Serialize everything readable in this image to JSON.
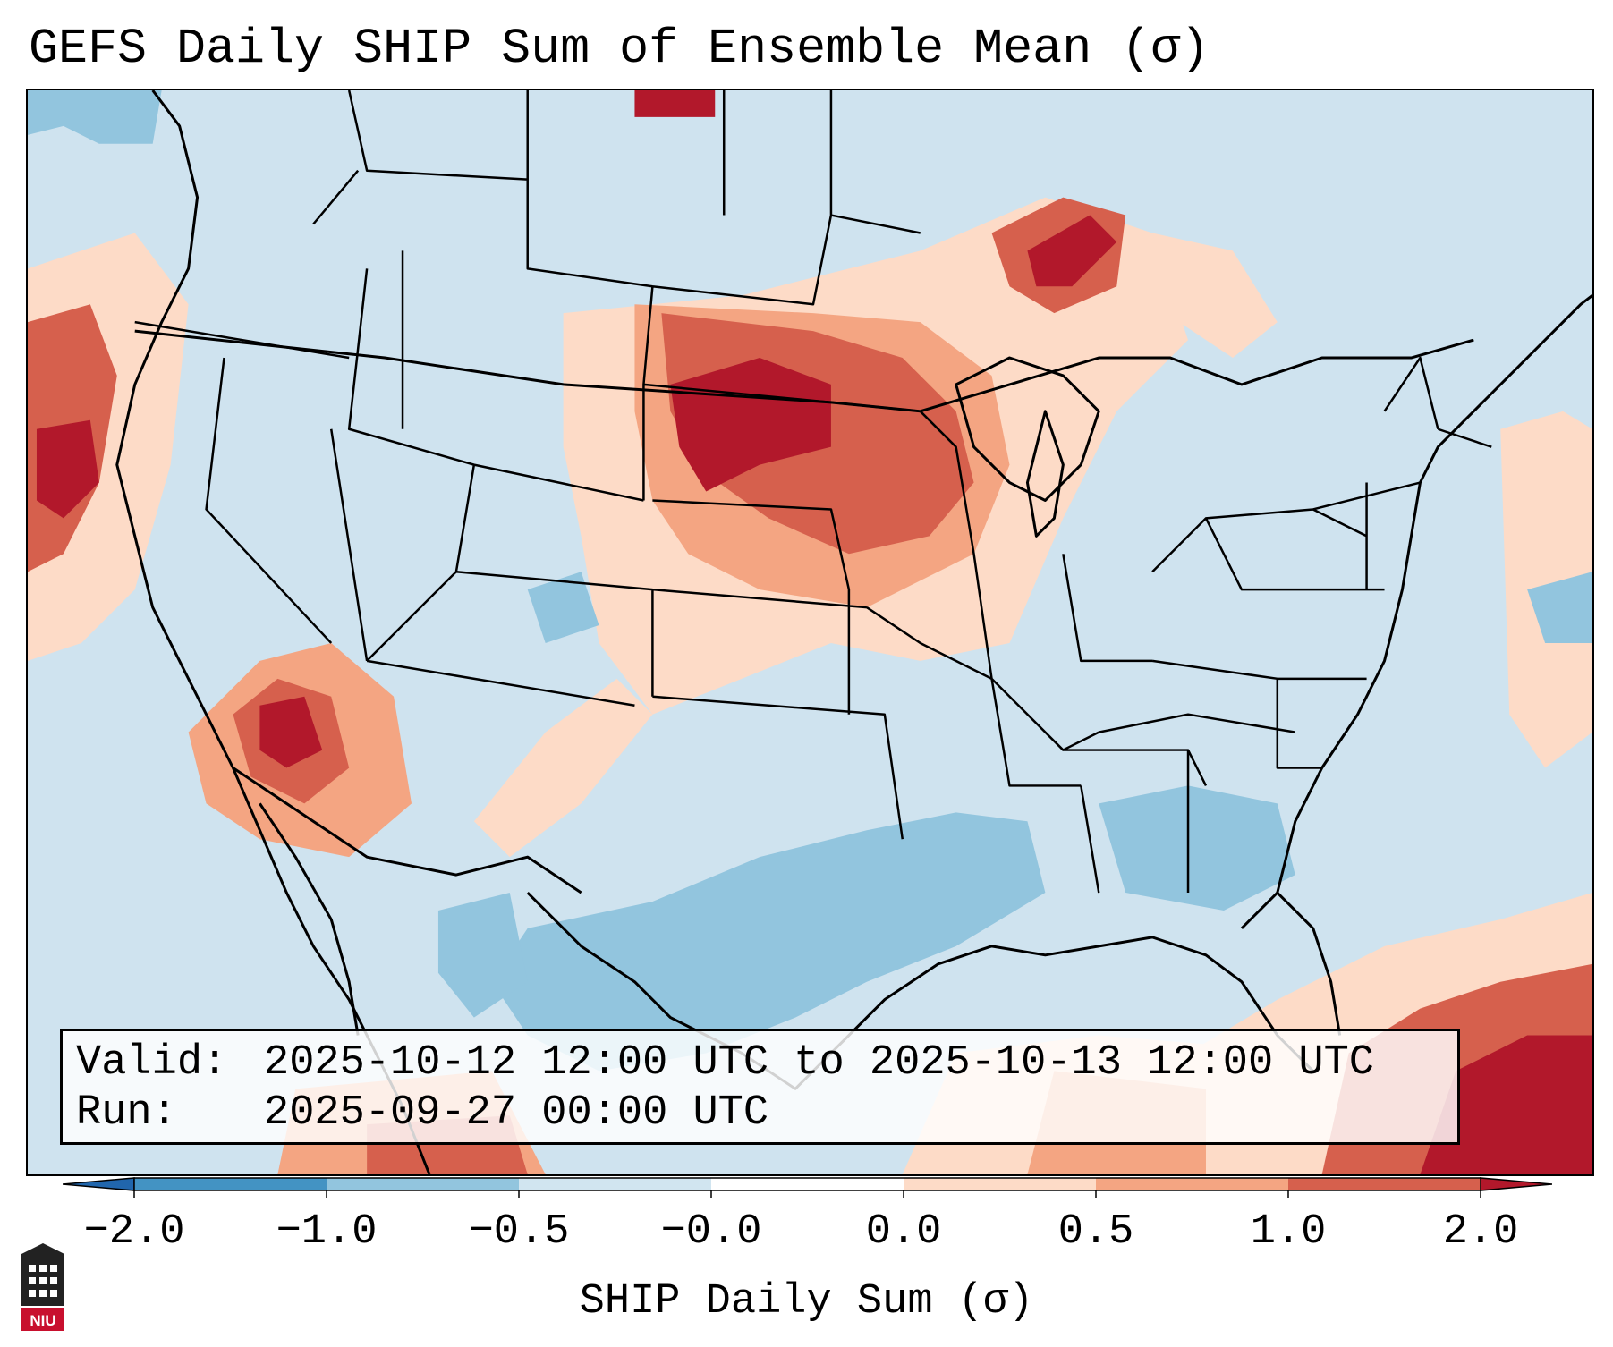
{
  "title": "GEFS Daily SHIP Sum of Ensemble Mean (σ)",
  "info_box": {
    "valid_label": "Valid:",
    "valid_value": "2025-10-12 12:00 UTC to 2025-10-13 12:00 UTC",
    "run_label": "Run:",
    "run_value": "2025-09-27 00:00 UTC"
  },
  "map": {
    "region": "Contiguous United States",
    "ocean_color": "#cfe3ef",
    "anomaly_regions": [
      {
        "name": "Northern Plains / Upper Midwest",
        "level": "high",
        "color": "#d6604d"
      },
      {
        "name": "Dakotas core",
        "level": "very-high",
        "color": "#b2182b"
      },
      {
        "name": "Upper Great Lakes",
        "level": "high",
        "color": "#d6604d"
      },
      {
        "name": "Southwest Arizona / Nevada",
        "level": "very-high",
        "color": "#b2182b"
      },
      {
        "name": "Pacific Northwest coast",
        "level": "high",
        "color": "#d6604d"
      },
      {
        "name": "Gulf Coast / Southern Plains",
        "level": "low",
        "color": "#92c5de"
      },
      {
        "name": "Caribbean / Florida Straits",
        "level": "very-high",
        "color": "#b2182b"
      },
      {
        "name": "Western Atlantic",
        "level": "moderate",
        "color": "#fddbc7"
      }
    ]
  },
  "colorbar": {
    "label": "SHIP Daily Sum (σ)",
    "ticks": [
      "−2.0",
      "−1.0",
      "−0.5",
      "−0.0",
      "0.0",
      "0.5",
      "1.0",
      "2.0"
    ],
    "colors": [
      "#4393c3",
      "#92c5de",
      "#d1e5f0",
      "#ffffff",
      "#fddbc7",
      "#f4a582",
      "#d6604d",
      "#b2182b"
    ],
    "extend_low_color": "#2166ac",
    "extend_high_color": "#b2182b"
  },
  "logo": {
    "text": "NIU",
    "icon": "university-tower-icon"
  }
}
